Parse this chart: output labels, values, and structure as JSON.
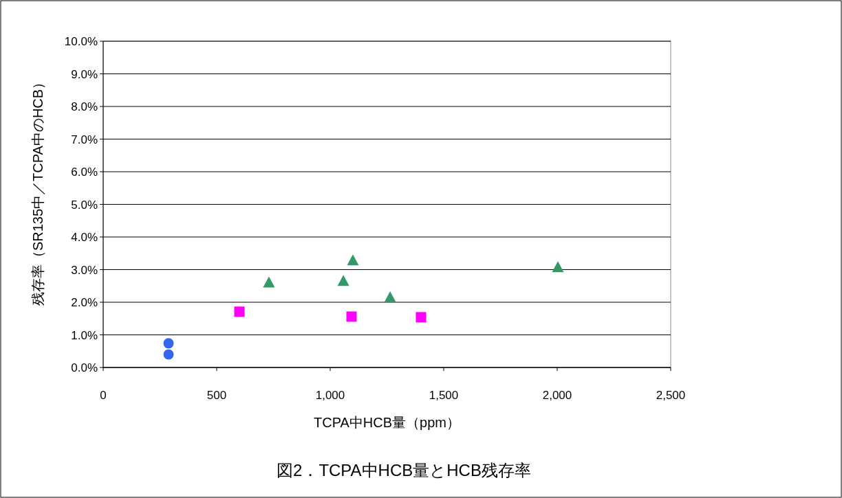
{
  "chart_data": {
    "type": "scatter",
    "title": "図2．TCPA中HCB量とHCB残存率",
    "xlabel": "TCPA中HCB量（ppm）",
    "ylabel": "残存率（SR135中／TCPA中のHCB）",
    "xlim": [
      0,
      2500
    ],
    "xticks": [
      0,
      {
        "value": 500,
        "label": "500"
      },
      {
        "value": 1000,
        "label": "1,000"
      },
      {
        "value": 1500,
        "label": "1,500"
      },
      {
        "value": 2000,
        "label": "2,000"
      },
      {
        "value": 2500,
        "label": "2,500"
      }
    ],
    "ylim": [
      0,
      10
    ],
    "yticks": [
      {
        "value": 0,
        "label": "0.0%"
      },
      {
        "value": 1,
        "label": "1.0%"
      },
      {
        "value": 2,
        "label": "2.0%"
      },
      {
        "value": 3,
        "label": "3.0%"
      },
      {
        "value": 4,
        "label": "4.0%"
      },
      {
        "value": 5,
        "label": "5.0%"
      },
      {
        "value": 6,
        "label": "6.0%"
      },
      {
        "value": 7,
        "label": "7.0%"
      },
      {
        "value": 8,
        "label": "8.0%"
      },
      {
        "value": 9,
        "label": "9.0%"
      },
      {
        "value": 10,
        "label": "10.0%"
      }
    ],
    "grid": "y",
    "series": [
      {
        "color": "#3366ee",
        "marker": "circle",
        "x": [
          288,
          288
        ],
        "values": [
          0.74,
          0.4
        ]
      },
      {
        "color": "#ff00ff",
        "marker": "square",
        "x": [
          600,
          1094,
          1400
        ],
        "values": [
          1.71,
          1.56,
          1.54
        ]
      },
      {
        "color": "#339966",
        "marker": "triangle",
        "x": [
          730,
          1058,
          1100,
          1264,
          2003
        ],
        "values": [
          2.6,
          2.65,
          3.28,
          2.15,
          3.07
        ]
      }
    ]
  }
}
